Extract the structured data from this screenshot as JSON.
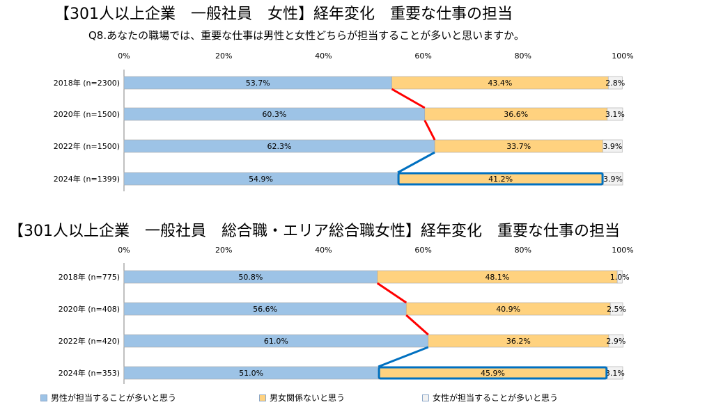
{
  "charts_titles": {
    "title1": "【301人以上企業　一般社員　女性】経年変化　重要な仕事の担当",
    "subtitle1": "Q8.あなたの職場では、重要な仕事は男性と女性どちらが担当することが多いと思いますか。",
    "title2": "【301人以上企業　一般社員　総合職・エリア総合職女性】経年変化　重要な仕事の担当"
  },
  "colors": {
    "male": "#9dc3e6",
    "neutral": "#ffd27f",
    "female": "#f2f2f2",
    "up_line": "#ff0000",
    "down_line": "#0070c0",
    "highlight": "#0070c0"
  },
  "legend": [
    {
      "label": "男性が担当することが多いと思う",
      "color": "#9dc3e6"
    },
    {
      "label": "男女関係ないと思う",
      "color": "#ffd27f"
    },
    {
      "label": "女性が担当することが多いと思う",
      "color": "#f2f2f2"
    }
  ],
  "chart_data": [
    {
      "type": "bar",
      "stacked": true,
      "orientation": "horizontal",
      "title": "【301人以上企業　一般社員　女性】経年変化　重要な仕事の担当",
      "subtitle": "Q8.あなたの職場では、重要な仕事は男性と女性どちらが担当することが多いと思いますか。",
      "xlim": [
        0,
        100
      ],
      "ticks": [
        "0%",
        "20%",
        "40%",
        "60%",
        "80%",
        "100%"
      ],
      "categories": [
        "2018年 (n=2300)",
        "2020年 (n=1500)",
        "2022年 (n=1500)",
        "2024年 (n=1399)"
      ],
      "series": [
        {
          "name": "男性が担当することが多いと思う",
          "values": [
            53.7,
            60.3,
            62.3,
            54.9
          ]
        },
        {
          "name": "男女関係ないと思う",
          "values": [
            43.4,
            36.6,
            33.7,
            41.2
          ]
        },
        {
          "name": "女性が担当することが多いと思う",
          "values": [
            2.8,
            3.1,
            3.9,
            3.9
          ]
        }
      ],
      "highlight": {
        "category_index": 3,
        "series_index": 1
      },
      "grid": false
    },
    {
      "type": "bar",
      "stacked": true,
      "orientation": "horizontal",
      "title": "【301人以上企業　一般社員　総合職・エリア総合職女性】経年変化　重要な仕事の担当",
      "xlim": [
        0,
        100
      ],
      "ticks": [
        "0%",
        "20%",
        "40%",
        "60%",
        "80%",
        "100%"
      ],
      "categories": [
        "2018年 (n=775)",
        "2020年 (n=408)",
        "2022年 (n=420)",
        "2024年 (n=353)"
      ],
      "series": [
        {
          "name": "男性が担当することが多いと思う",
          "values": [
            50.8,
            56.6,
            61.0,
            51.0
          ]
        },
        {
          "name": "男女関係ないと思う",
          "values": [
            48.1,
            40.9,
            36.2,
            45.9
          ]
        },
        {
          "name": "女性が担当することが多いと思う",
          "values": [
            1.0,
            2.5,
            2.9,
            3.1
          ]
        }
      ],
      "highlight": {
        "category_index": 3,
        "series_index": 1
      },
      "grid": false
    }
  ]
}
